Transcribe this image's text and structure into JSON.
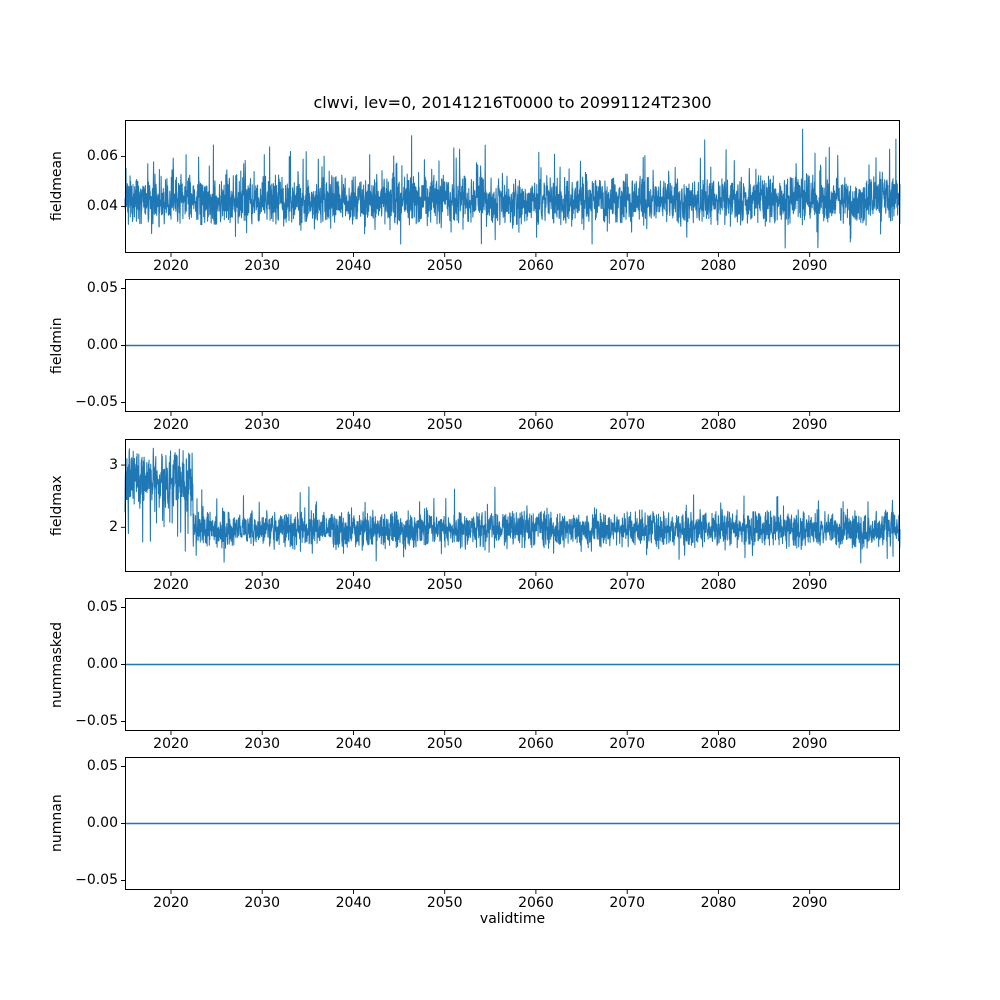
{
  "figure": {
    "title": "clwvi, lev=0, 20141216T0000 to 20991124T2300",
    "xlabel": "validtime",
    "line_color": "#1f77b4",
    "axis_color": "#000000",
    "background_color": "#ffffff",
    "x_axis": {
      "min": 2014.96,
      "max": 2099.9,
      "ticks": [
        2020,
        2030,
        2040,
        2050,
        2060,
        2070,
        2080,
        2090
      ],
      "tick_labels": [
        "2020",
        "2030",
        "2040",
        "2050",
        "2060",
        "2070",
        "2080",
        "2090"
      ]
    }
  },
  "chart_data": [
    {
      "type": "line",
      "name": "fieldmean",
      "ylabel": "fieldmean",
      "ylim": [
        0.0215,
        0.0745
      ],
      "yticks": [
        0.04,
        0.06
      ],
      "ytick_labels": [
        "0.04",
        "0.06"
      ],
      "legend": "none",
      "grid": false,
      "series": {
        "kind": "noisy",
        "seed": 42,
        "points": 3200,
        "segments": [
          {
            "x_start": 2014.96,
            "x_end": 2099.9,
            "center": 0.0425,
            "spread": 0.011,
            "spike_up_prob": 0.06,
            "spike_up_max": 0.02,
            "spike_down_prob": 0.04,
            "spike_down_max": 0.012,
            "clamp": [
              0.0235,
              0.0733
            ]
          }
        ]
      }
    },
    {
      "type": "line",
      "name": "fieldmin",
      "ylabel": "fieldmin",
      "ylim": [
        -0.0583,
        0.0583
      ],
      "yticks": [
        -0.05,
        0,
        0.05
      ],
      "ytick_labels": [
        "−0.05",
        "0.00",
        "0.05"
      ],
      "legend": "none",
      "grid": false,
      "series": {
        "kind": "constant",
        "value": 0.0
      }
    },
    {
      "type": "line",
      "name": "fieldmax",
      "ylabel": "fieldmax",
      "ylim": [
        1.28,
        3.42
      ],
      "yticks": [
        2,
        3
      ],
      "ytick_labels": [
        "2",
        "3"
      ],
      "legend": "none",
      "grid": false,
      "series": {
        "kind": "noisy",
        "seed": 7,
        "points": 3200,
        "segments": [
          {
            "x_start": 2014.96,
            "x_end": 2022.4,
            "center": 2.75,
            "spread": 0.55,
            "spike_up_prob": 0.02,
            "spike_up_max": 0.15,
            "spike_down_prob": 0.1,
            "spike_down_max": 1.1,
            "clamp": [
              1.45,
              3.38
            ]
          },
          {
            "x_start": 2022.4,
            "x_end": 2099.9,
            "center": 1.97,
            "spread": 0.33,
            "spike_up_prob": 0.05,
            "spike_up_max": 0.5,
            "spike_down_prob": 0.05,
            "spike_down_max": 0.35,
            "clamp": [
              1.3,
              2.75
            ]
          }
        ]
      }
    },
    {
      "type": "line",
      "name": "nummasked",
      "ylabel": "nummasked",
      "ylim": [
        -0.0583,
        0.0583
      ],
      "yticks": [
        -0.05,
        0,
        0.05
      ],
      "ytick_labels": [
        "−0.05",
        "0.00",
        "0.05"
      ],
      "legend": "none",
      "grid": false,
      "series": {
        "kind": "constant",
        "value": 0.0
      }
    },
    {
      "type": "line",
      "name": "numnan",
      "ylabel": "numnan",
      "ylim": [
        -0.0583,
        0.0583
      ],
      "yticks": [
        -0.05,
        0,
        0.05
      ],
      "ytick_labels": [
        "−0.05",
        "0.00",
        "0.05"
      ],
      "legend": "none",
      "grid": false,
      "series": {
        "kind": "constant",
        "value": 0.0
      }
    }
  ]
}
